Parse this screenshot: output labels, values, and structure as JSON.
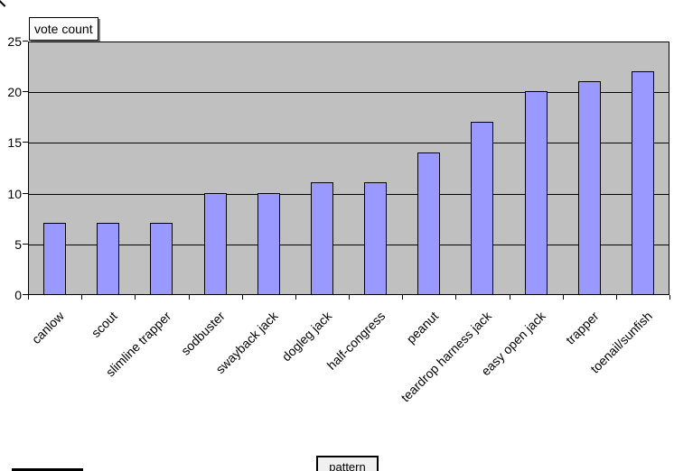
{
  "chart_data": {
    "type": "bar",
    "title": "",
    "legend": "vote count",
    "legend_position": "top-left",
    "xlabel": "pattern",
    "ylabel": "",
    "categories": [
      "canlow",
      "scout",
      "slimline trapper",
      "sodbuster",
      "swayback jack",
      "dogleg jack",
      "half-congress",
      "peanut",
      "teardrop harness jack",
      "easy open jack",
      "trapper",
      "toenail/sunfish"
    ],
    "series": [
      {
        "name": "vote count",
        "values": [
          7,
          7,
          7,
          10,
          10,
          11,
          11,
          14,
          17,
          20,
          21,
          22
        ]
      }
    ],
    "ylim": [
      0,
      25
    ],
    "yticks": [
      0,
      5,
      10,
      15,
      20,
      25
    ],
    "grid": true,
    "bar_color": "#9999ff",
    "bar_border_color": "#000000",
    "plot_bg": "#c0c0c0",
    "gridline_color": "#000000"
  }
}
